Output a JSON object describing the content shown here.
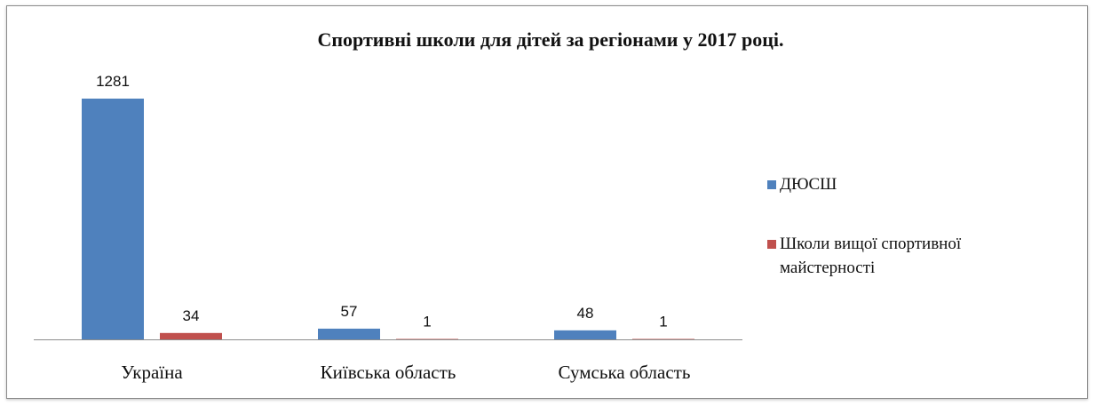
{
  "chart_data": {
    "type": "bar",
    "title": "Спортивні школи для дітей за регіонами у 2017 році.",
    "categories": [
      "Україна",
      "Київська область",
      "Сумська область"
    ],
    "series": [
      {
        "name": "ДЮСШ",
        "values": [
          1281,
          57,
          48
        ],
        "color": "#4f81bd"
      },
      {
        "name": "Школи вищої спортивної майстерності",
        "values": [
          34,
          1,
          1
        ],
        "color": "#c0504d"
      }
    ],
    "legend_lines": [
      [
        "ДЮСШ"
      ],
      [
        "Школи вищої спортивної",
        "майстерності"
      ]
    ],
    "ylim": [
      0,
      1281
    ],
    "grid": false,
    "legend_position": "right",
    "xlabel": "",
    "ylabel": ""
  }
}
